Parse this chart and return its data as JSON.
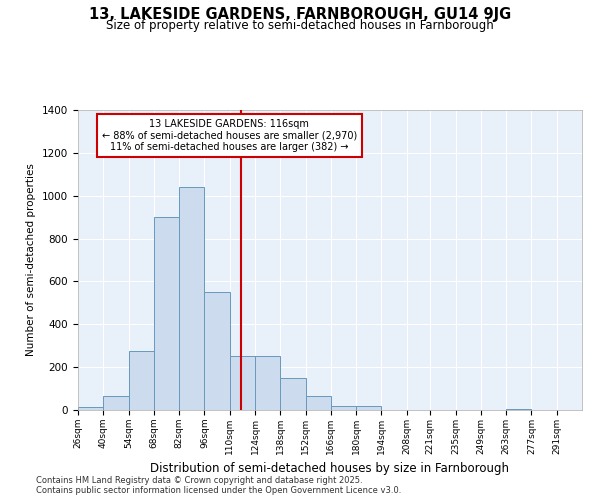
{
  "title1": "13, LAKESIDE GARDENS, FARNBOROUGH, GU14 9JG",
  "title2": "Size of property relative to semi-detached houses in Farnborough",
  "xlabel": "Distribution of semi-detached houses by size in Farnborough",
  "ylabel": "Number of semi-detached properties",
  "annotation_line1": "13 LAKESIDE GARDENS: 116sqm",
  "annotation_line2": "← 88% of semi-detached houses are smaller (2,970)",
  "annotation_line3": "11% of semi-detached houses are larger (382) →",
  "footnote1": "Contains HM Land Registry data © Crown copyright and database right 2025.",
  "footnote2": "Contains public sector information licensed under the Open Government Licence v3.0.",
  "bar_color": "#ccdcee",
  "bar_edge_color": "#6699bb",
  "vline_color": "#cc0000",
  "vline_x": 116,
  "annotation_box_color": "#cc0000",
  "bg_color": "#e8f0fa",
  "bins": [
    26,
    40,
    54,
    68,
    82,
    96,
    110,
    124,
    138,
    152,
    166,
    180,
    194,
    208,
    221,
    235,
    249,
    263,
    277,
    291,
    305
  ],
  "counts": [
    15,
    65,
    275,
    900,
    1040,
    550,
    250,
    250,
    150,
    65,
    20,
    20,
    0,
    0,
    0,
    0,
    0,
    5,
    0,
    0
  ],
  "ylim": [
    0,
    1400
  ],
  "yticks": [
    0,
    200,
    400,
    600,
    800,
    1000,
    1200,
    1400
  ]
}
